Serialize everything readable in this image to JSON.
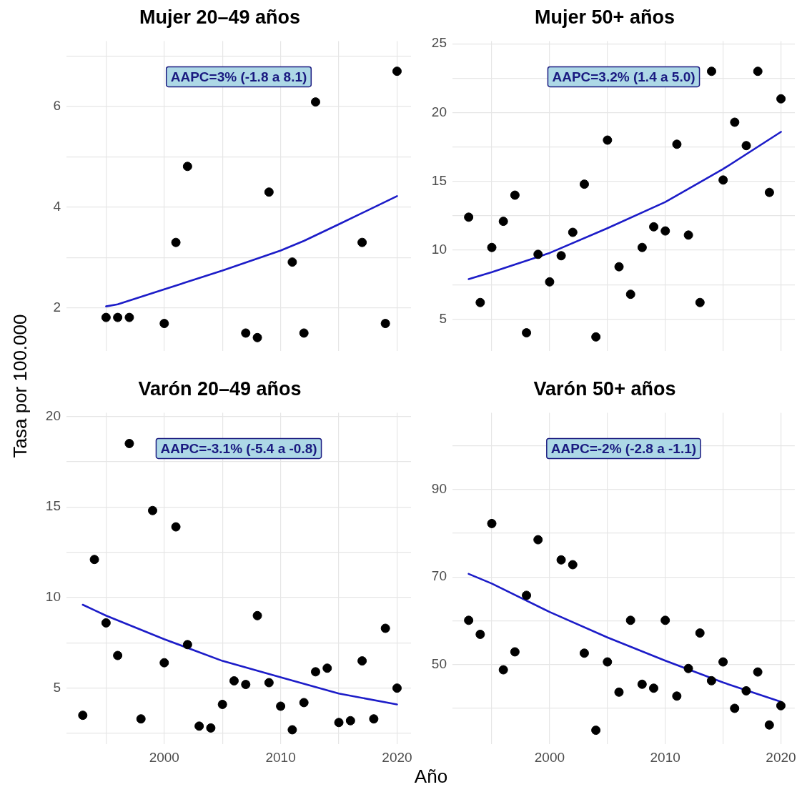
{
  "chart_data": [
    {
      "type": "scatter",
      "title": "Mujer 20–49 años",
      "xlabel": "Año",
      "ylabel": "Tasa por 100.000",
      "annotations": [
        "AAPC=3% (-1.8 a 8.1)"
      ],
      "xlim": [
        1991.6,
        2021.2
      ],
      "xticks": [
        {
          "value": 1995,
          "label": null
        },
        2000,
        {
          "value": 2005,
          "label": null
        },
        2010,
        {
          "value": 2015,
          "label": null
        },
        2020
      ],
      "ylim": [
        1.15,
        7.3
      ],
      "yticks": [
        2,
        {
          "value": 3,
          "label": null
        },
        4,
        {
          "value": 5,
          "label": null
        },
        6,
        {
          "value": 7,
          "label": null
        }
      ],
      "grid": true,
      "legend": false,
      "tick_labels": "y",
      "series": [
        {
          "type": "scatter",
          "marker": "circle",
          "color": "#000000",
          "x": [
            1995,
            1996,
            1997,
            2000,
            2001,
            2002,
            2007,
            2008,
            2009,
            2011,
            2012,
            2013,
            2017,
            2019,
            2020
          ],
          "values": [
            1.81,
            1.81,
            1.81,
            1.69,
            3.3,
            4.81,
            1.5,
            1.41,
            4.3,
            2.91,
            1.5,
            6.09,
            3.3,
            1.69,
            6.7
          ]
        },
        {
          "type": "line",
          "marker": "none",
          "color": "#1c1cc8",
          "x": [
            1995,
            1996,
            2000,
            2005,
            2010,
            2012,
            2015,
            2020
          ],
          "values": [
            2.03,
            2.07,
            2.37,
            2.74,
            3.14,
            3.33,
            3.66,
            4.22
          ]
        }
      ]
    },
    {
      "type": "scatter",
      "title": "Mujer 50+ años",
      "annotations": [
        "AAPC=3.2% (1.4 a 5.0)"
      ],
      "xlim": [
        1991.6,
        2021.2
      ],
      "xticks": [
        {
          "value": 1995,
          "label": null
        },
        2000,
        {
          "value": 2005,
          "label": null
        },
        2010,
        {
          "value": 2015,
          "label": null
        },
        2020
      ],
      "ylim": [
        2.7,
        25.2
      ],
      "yticks": [
        5,
        {
          "value": 7.5,
          "label": null
        },
        10,
        {
          "value": 12.5,
          "label": null
        },
        15,
        {
          "value": 17.5,
          "label": null
        },
        20,
        {
          "value": 22.5,
          "label": null
        },
        25
      ],
      "grid": true,
      "legend": false,
      "tick_labels": "y",
      "series": [
        {
          "type": "scatter",
          "marker": "circle",
          "color": "#000000",
          "x": [
            1993,
            1994,
            1995,
            1996,
            1997,
            1998,
            1999,
            2000,
            2001,
            2002,
            2003,
            2004,
            2005,
            2006,
            2007,
            2008,
            2009,
            2010,
            2011,
            2012,
            2013,
            2014,
            2015,
            2016,
            2017,
            2018,
            2019,
            2020
          ],
          "values": [
            12.4,
            6.2,
            10.2,
            12.1,
            14.0,
            4.0,
            9.7,
            7.7,
            9.6,
            11.3,
            14.8,
            3.7,
            18.0,
            8.8,
            6.8,
            10.2,
            11.7,
            11.4,
            17.7,
            11.1,
            6.2,
            23.0,
            15.1,
            19.3,
            17.6,
            23.0,
            14.2,
            21.0
          ]
        },
        {
          "type": "line",
          "marker": "none",
          "color": "#1c1cc8",
          "x": [
            1993,
            1995,
            2000,
            2005,
            2010,
            2015,
            2020
          ],
          "values": [
            7.9,
            8.4,
            9.8,
            11.6,
            13.5,
            15.9,
            18.6
          ]
        }
      ]
    },
    {
      "type": "scatter",
      "title": "Varón 20–49 años",
      "annotations": [
        "AAPC=-3.1% (-5.4 a -0.8)"
      ],
      "xlim": [
        1991.6,
        2021.2
      ],
      "xticks": [
        {
          "value": 1995,
          "label": null
        },
        2000,
        {
          "value": 2005,
          "label": null
        },
        2010,
        {
          "value": 2015,
          "label": null
        },
        2020
      ],
      "ylim": [
        1.9,
        20.2
      ],
      "yticks": [
        {
          "value": 2.5,
          "label": null
        },
        5,
        {
          "value": 7.5,
          "label": null
        },
        10,
        {
          "value": 12.5,
          "label": null
        },
        15,
        {
          "value": 17.5,
          "label": null
        },
        20
      ],
      "grid": true,
      "legend": false,
      "series": [
        {
          "type": "scatter",
          "marker": "circle",
          "color": "#000000",
          "x": [
            1993,
            1994,
            1995,
            1996,
            1997,
            1998,
            1999,
            2000,
            2001,
            2002,
            2003,
            2004,
            2005,
            2006,
            2007,
            2008,
            2009,
            2010,
            2011,
            2012,
            2013,
            2014,
            2015,
            2016,
            2017,
            2018,
            2019,
            2020
          ],
          "values": [
            3.5,
            12.1,
            8.6,
            6.8,
            18.5,
            3.3,
            14.8,
            6.4,
            13.9,
            7.4,
            2.9,
            2.8,
            4.1,
            5.4,
            5.2,
            9.0,
            5.3,
            4.0,
            2.7,
            4.2,
            5.9,
            6.1,
            3.1,
            3.2,
            6.5,
            3.3,
            8.3,
            5.0
          ]
        },
        {
          "type": "line",
          "marker": "none",
          "color": "#1c1cc8",
          "x": [
            1993,
            1994,
            1995,
            2000,
            2005,
            2010,
            2015,
            2020
          ],
          "values": [
            9.6,
            9.3,
            9.0,
            7.7,
            6.5,
            5.6,
            4.7,
            4.1
          ]
        }
      ]
    },
    {
      "type": "scatter",
      "title": "Varón 50+ años",
      "annotations": [
        "AAPC=-2% (-2.8 a -1.1)"
      ],
      "xlim": [
        1991.6,
        2021.2
      ],
      "xticks": [
        {
          "value": 1995,
          "label": null
        },
        2000,
        {
          "value": 2005,
          "label": null
        },
        2010,
        {
          "value": 2015,
          "label": null
        },
        2020
      ],
      "ylim": [
        31.8,
        107.5
      ],
      "yticks": [
        {
          "value": 40,
          "label": null
        },
        50,
        {
          "value": 60,
          "label": null
        },
        70,
        {
          "value": 80,
          "label": null
        },
        90,
        {
          "value": 100,
          "label": null
        }
      ],
      "grid": true,
      "legend": false,
      "series": [
        {
          "type": "scatter",
          "marker": "circle",
          "color": "#000000",
          "x": [
            1993,
            1994,
            1995,
            1996,
            1997,
            1998,
            1999,
            2001,
            2002,
            2003,
            2004,
            2005,
            2006,
            2007,
            2008,
            2009,
            2010,
            2011,
            2012,
            2013,
            2014,
            2015,
            2016,
            2017,
            2018,
            2019,
            2020
          ],
          "values": [
            60.1,
            56.9,
            82.2,
            48.8,
            52.9,
            65.8,
            78.5,
            73.9,
            72.8,
            52.6,
            35.0,
            50.6,
            43.7,
            60.1,
            45.5,
            44.6,
            60.1,
            42.8,
            49.1,
            57.2,
            46.3,
            50.6,
            40.0,
            44.0,
            48.3,
            36.2,
            40.6
          ]
        },
        {
          "type": "line",
          "marker": "none",
          "color": "#1c1cc8",
          "x": [
            1993,
            1995,
            2000,
            2005,
            2010,
            2015,
            2020
          ],
          "values": [
            70.7,
            68.5,
            62.0,
            56.2,
            50.9,
            45.9,
            41.5
          ]
        }
      ]
    }
  ]
}
